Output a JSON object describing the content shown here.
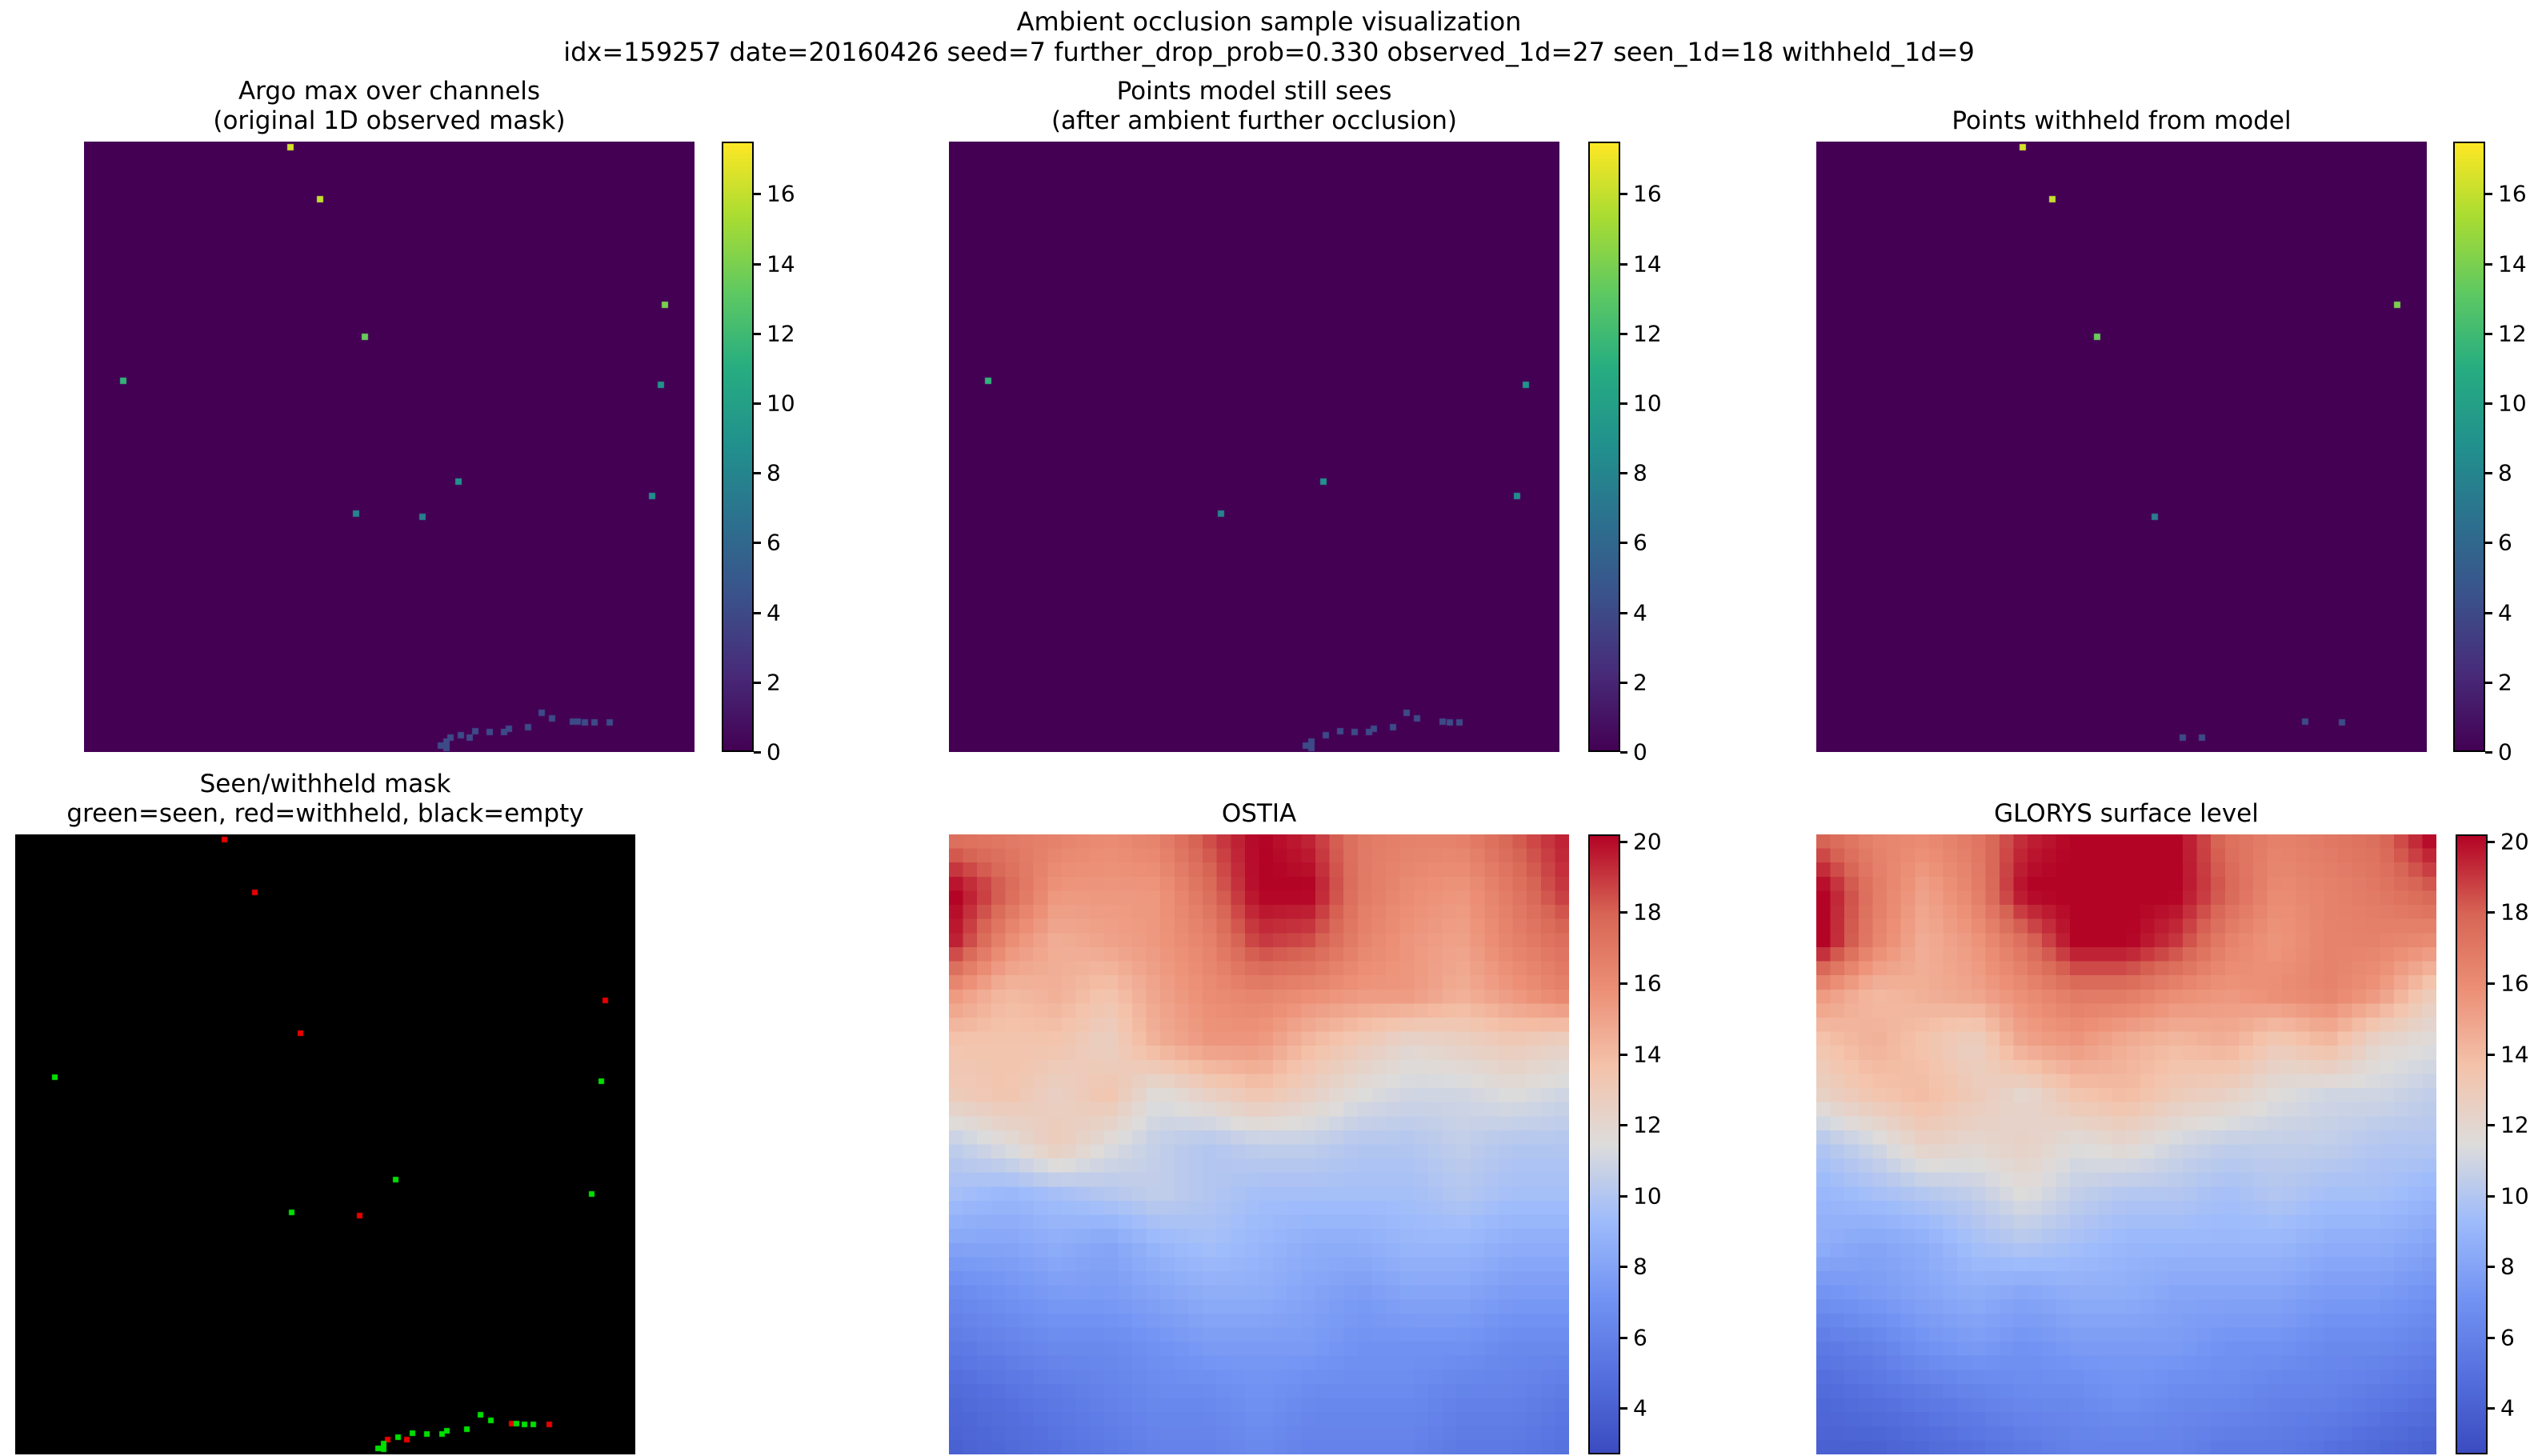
{
  "figure": {
    "suptitle": "Ambient occlusion sample visualization",
    "subtitle": "idx=159257 date=20160426 seed=7 further_drop_prob=0.330 observed_1d=27 seen_1d=18 withheld_1d=9"
  },
  "colors": {
    "viridis_background": "#440154",
    "mask_background": "#000000",
    "seen_green": "#00e000",
    "withheld_red": "#e80000",
    "figure_background": "#ffffff"
  },
  "chart_data": [
    {
      "id": "argo_observed",
      "type": "scatter-heatmap",
      "title_lines": [
        "Argo max over channels",
        "(original 1D observed mask)"
      ],
      "colormap": "viridis",
      "vmin": 0,
      "vmax": 17.5,
      "background_value": 0,
      "colorbar_ticks": [
        16,
        14,
        12,
        10,
        8,
        6,
        4,
        2,
        0
      ],
      "points": [
        [
          0.338,
          0.009,
          16.5
        ],
        [
          0.387,
          0.094,
          16
        ],
        [
          0.951,
          0.268,
          14
        ],
        [
          0.46,
          0.32,
          13.5
        ],
        [
          0.064,
          0.392,
          11.5
        ],
        [
          0.945,
          0.398,
          9
        ],
        [
          0.613,
          0.557,
          9
        ],
        [
          0.93,
          0.58,
          8.5
        ],
        [
          0.555,
          0.615,
          7.5
        ],
        [
          0.446,
          0.61,
          8
        ],
        [
          0.75,
          0.936,
          4
        ],
        [
          0.767,
          0.945,
          4
        ],
        [
          0.801,
          0.95,
          4
        ],
        [
          0.809,
          0.95,
          4
        ],
        [
          0.821,
          0.951,
          4
        ],
        [
          0.836,
          0.951,
          4
        ],
        [
          0.861,
          0.951,
          4
        ],
        [
          0.728,
          0.959,
          4
        ],
        [
          0.696,
          0.962,
          4
        ],
        [
          0.688,
          0.967,
          4
        ],
        [
          0.664,
          0.967,
          4
        ],
        [
          0.641,
          0.966,
          4
        ],
        [
          0.632,
          0.976,
          4
        ],
        [
          0.617,
          0.972,
          4
        ],
        [
          0.6,
          0.976,
          4
        ],
        [
          0.594,
          0.983,
          4,
          2
        ],
        [
          0.585,
          0.99,
          4
        ]
      ]
    },
    {
      "id": "points_seen",
      "type": "scatter-heatmap",
      "title_lines": [
        "Points model still sees",
        "(after ambient further occlusion)"
      ],
      "colormap": "viridis",
      "vmin": 0,
      "vmax": 17.5,
      "background_value": 0,
      "colorbar_ticks": [
        16,
        14,
        12,
        10,
        8,
        6,
        4,
        2,
        0
      ],
      "points": [
        [
          0.064,
          0.392,
          11.5
        ],
        [
          0.945,
          0.398,
          9
        ],
        [
          0.613,
          0.557,
          9
        ],
        [
          0.93,
          0.58,
          8.5
        ],
        [
          0.446,
          0.61,
          8
        ],
        [
          0.75,
          0.936,
          4
        ],
        [
          0.767,
          0.945,
          4
        ],
        [
          0.809,
          0.95,
          4
        ],
        [
          0.821,
          0.951,
          4
        ],
        [
          0.836,
          0.951,
          4
        ],
        [
          0.728,
          0.959,
          4
        ],
        [
          0.696,
          0.962,
          4
        ],
        [
          0.688,
          0.967,
          4
        ],
        [
          0.664,
          0.967,
          4
        ],
        [
          0.641,
          0.966,
          4
        ],
        [
          0.617,
          0.972,
          4
        ],
        [
          0.594,
          0.983,
          4,
          2
        ],
        [
          0.585,
          0.99,
          4
        ]
      ]
    },
    {
      "id": "points_withheld",
      "type": "scatter-heatmap",
      "title_lines": [
        "Points withheld from model"
      ],
      "colormap": "viridis",
      "vmin": 0,
      "vmax": 17.5,
      "background_value": 0,
      "colorbar_ticks": [
        16,
        14,
        12,
        10,
        8,
        6,
        4,
        2,
        0
      ],
      "points": [
        [
          0.338,
          0.009,
          16.5
        ],
        [
          0.387,
          0.094,
          16
        ],
        [
          0.951,
          0.268,
          14
        ],
        [
          0.46,
          0.32,
          13.5
        ],
        [
          0.555,
          0.615,
          7.5
        ],
        [
          0.801,
          0.95,
          4
        ],
        [
          0.861,
          0.951,
          4
        ],
        [
          0.632,
          0.976,
          4
        ],
        [
          0.6,
          0.976,
          4
        ]
      ]
    },
    {
      "id": "seen_withheld_mask",
      "type": "category-scatter",
      "title_lines": [
        "Seen/withheld mask",
        "green=seen, red=withheld, black=empty"
      ],
      "legend": {
        "green": "seen",
        "red": "withheld",
        "black": "empty"
      },
      "points": [
        [
          0.338,
          0.009,
          "withheld"
        ],
        [
          0.387,
          0.094,
          "withheld"
        ],
        [
          0.951,
          0.268,
          "withheld"
        ],
        [
          0.46,
          0.32,
          "withheld"
        ],
        [
          0.064,
          0.392,
          "seen"
        ],
        [
          0.945,
          0.398,
          "seen"
        ],
        [
          0.613,
          0.557,
          "seen"
        ],
        [
          0.93,
          0.58,
          "seen"
        ],
        [
          0.555,
          0.615,
          "withheld"
        ],
        [
          0.446,
          0.61,
          "seen"
        ],
        [
          0.75,
          0.936,
          "seen"
        ],
        [
          0.767,
          0.945,
          "seen"
        ],
        [
          0.801,
          0.95,
          "withheld"
        ],
        [
          0.809,
          0.95,
          "seen"
        ],
        [
          0.821,
          0.951,
          "seen"
        ],
        [
          0.836,
          0.951,
          "seen"
        ],
        [
          0.861,
          0.951,
          "withheld"
        ],
        [
          0.728,
          0.959,
          "seen"
        ],
        [
          0.696,
          0.962,
          "seen"
        ],
        [
          0.688,
          0.967,
          "seen"
        ],
        [
          0.664,
          0.967,
          "seen"
        ],
        [
          0.641,
          0.966,
          "seen"
        ],
        [
          0.632,
          0.976,
          "withheld"
        ],
        [
          0.617,
          0.972,
          "seen"
        ],
        [
          0.6,
          0.976,
          "withheld"
        ],
        [
          0.594,
          0.983,
          "seen",
          2
        ],
        [
          0.585,
          0.99,
          "seen"
        ]
      ]
    },
    {
      "id": "ostia",
      "type": "heatmap",
      "title_lines": [
        "OSTIA"
      ],
      "colormap": "coolwarm",
      "vmin": 2.7,
      "vmax": 20.2,
      "colorbar_ticks": [
        20,
        18,
        16,
        14,
        12,
        10,
        8,
        6,
        4
      ],
      "grid": [
        [
          17.5,
          17.0,
          16.5,
          16.0,
          16.5,
          18.5,
          20.3,
          19.5,
          17.0,
          16.5,
          16.5,
          18.0,
          19.5
        ],
        [
          20.3,
          18.0,
          15.5,
          15.5,
          15.5,
          17.5,
          20.3,
          20.3,
          17.0,
          16.0,
          15.5,
          17.0,
          19.0
        ],
        [
          19.5,
          16.0,
          14.5,
          15.0,
          15.5,
          16.5,
          19.0,
          18.5,
          16.5,
          15.5,
          15.0,
          16.5,
          17.5
        ],
        [
          15.5,
          14.0,
          14.5,
          13.5,
          15.0,
          16.0,
          16.5,
          16.0,
          15.5,
          15.5,
          14.5,
          15.5,
          16.5
        ],
        [
          13.5,
          13.5,
          13.5,
          12.5,
          14.5,
          15.5,
          15.5,
          14.0,
          13.0,
          12.0,
          12.5,
          13.0,
          12.5
        ],
        [
          13.0,
          13.5,
          12.5,
          13.5,
          11.5,
          12.5,
          13.5,
          12.5,
          11.5,
          11.0,
          11.0,
          11.5,
          11.0
        ],
        [
          10.5,
          11.5,
          13.0,
          11.5,
          10.5,
          10.0,
          10.5,
          10.5,
          10.0,
          10.0,
          10.5,
          10.0,
          10.0
        ],
        [
          9.5,
          9.0,
          9.5,
          10.0,
          10.5,
          10.0,
          9.5,
          9.5,
          9.5,
          9.5,
          10.0,
          9.5,
          9.5
        ],
        [
          8.0,
          8.0,
          8.5,
          8.0,
          9.0,
          9.5,
          9.0,
          8.5,
          8.5,
          9.0,
          9.0,
          8.5,
          8.5
        ],
        [
          6.5,
          7.0,
          7.5,
          7.5,
          8.0,
          8.5,
          8.5,
          8.0,
          7.5,
          8.0,
          8.0,
          7.5,
          7.5
        ],
        [
          5.5,
          6.0,
          6.5,
          6.5,
          7.0,
          7.5,
          7.5,
          7.5,
          7.0,
          7.0,
          7.0,
          6.5,
          6.5
        ],
        [
          4.5,
          5.0,
          5.5,
          6.0,
          6.5,
          6.5,
          7.0,
          6.5,
          6.5,
          6.5,
          6.0,
          6.0,
          5.5
        ],
        [
          4.0,
          4.5,
          5.0,
          5.5,
          6.0,
          6.0,
          6.5,
          6.0,
          6.0,
          6.0,
          5.5,
          5.5,
          5.0
        ]
      ]
    },
    {
      "id": "glorys_surface",
      "type": "heatmap",
      "title_lines": [
        "GLORYS surface level"
      ],
      "colormap": "coolwarm",
      "vmin": 2.7,
      "vmax": 20.2,
      "colorbar_ticks": [
        20,
        18,
        16,
        14,
        12,
        10,
        8,
        6,
        4
      ],
      "grid": [
        [
          18.0,
          16.5,
          16.0,
          17.0,
          19.5,
          20.3,
          20.3,
          20.3,
          17.5,
          16.5,
          17.0,
          17.5,
          20.0
        ],
        [
          20.3,
          17.0,
          15.0,
          16.5,
          20.3,
          20.3,
          20.3,
          20.3,
          18.0,
          16.0,
          16.5,
          17.0,
          18.0
        ],
        [
          20.3,
          16.5,
          14.5,
          15.5,
          17.5,
          20.3,
          20.3,
          19.0,
          16.5,
          15.5,
          16.5,
          16.5,
          16.0
        ],
        [
          15.5,
          14.0,
          14.5,
          15.0,
          16.0,
          17.0,
          17.0,
          16.0,
          15.5,
          16.0,
          16.5,
          15.5,
          13.0
        ],
        [
          13.5,
          14.5,
          13.5,
          12.5,
          15.0,
          15.5,
          14.5,
          14.0,
          14.5,
          13.0,
          14.0,
          12.0,
          11.5
        ],
        [
          12.5,
          13.5,
          14.0,
          13.0,
          12.0,
          13.5,
          14.0,
          13.0,
          12.5,
          11.5,
          11.0,
          11.0,
          10.5
        ],
        [
          10.0,
          11.0,
          12.5,
          12.0,
          12.5,
          11.5,
          12.0,
          11.0,
          10.5,
          10.5,
          10.5,
          10.0,
          10.0
        ],
        [
          9.0,
          9.5,
          10.0,
          10.5,
          11.5,
          10.5,
          10.0,
          10.0,
          9.5,
          10.0,
          9.5,
          9.5,
          9.0
        ],
        [
          8.5,
          8.0,
          8.5,
          9.5,
          10.0,
          9.5,
          9.0,
          9.0,
          9.0,
          9.0,
          8.5,
          8.5,
          8.0
        ],
        [
          7.0,
          7.5,
          8.0,
          8.5,
          8.0,
          8.5,
          8.5,
          8.0,
          8.0,
          8.0,
          7.5,
          7.5,
          7.0
        ],
        [
          5.5,
          6.0,
          7.0,
          7.5,
          7.0,
          7.5,
          7.5,
          7.5,
          7.0,
          7.0,
          6.5,
          6.5,
          6.0
        ],
        [
          4.5,
          5.0,
          5.5,
          6.0,
          6.5,
          6.5,
          7.0,
          6.5,
          6.5,
          6.0,
          6.0,
          5.5,
          5.0
        ],
        [
          4.0,
          4.0,
          4.5,
          5.0,
          5.5,
          6.0,
          6.0,
          6.0,
          5.5,
          5.5,
          5.0,
          4.5,
          4.0
        ]
      ]
    }
  ]
}
